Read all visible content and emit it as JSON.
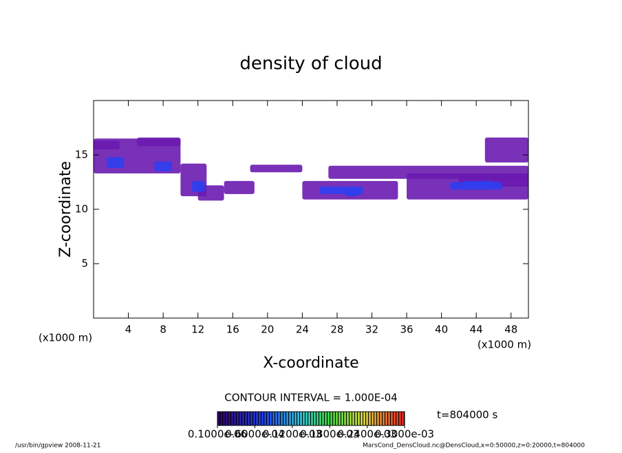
{
  "chart_data": {
    "type": "contour",
    "title": "density of cloud",
    "x_label": "X-coordinate",
    "y_label": "Z-coordinate",
    "x_unit": "(x1000 m)",
    "y_unit": "(x1000 m)",
    "xlim": [
      0,
      50
    ],
    "ylim": [
      0,
      20
    ],
    "xticks": [
      4,
      8,
      12,
      16,
      20,
      24,
      28,
      32,
      36,
      40,
      44,
      48
    ],
    "yticks": [
      5,
      10,
      15
    ],
    "patches": {
      "x": [
        [
          0,
          10
        ],
        [
          0,
          3
        ],
        [
          5,
          10
        ],
        [
          10,
          13
        ],
        [
          12,
          15
        ],
        [
          15,
          18.5
        ],
        [
          18,
          24
        ],
        [
          24,
          35
        ],
        [
          27,
          50
        ],
        [
          36,
          50
        ],
        [
          45,
          50
        ],
        [
          42,
          50
        ],
        [
          1.5,
          3.5
        ],
        [
          7,
          9
        ],
        [
          11.3,
          12.8
        ],
        [
          26,
          31
        ],
        [
          29,
          30.5
        ],
        [
          41,
          47
        ],
        [
          42.5,
          46
        ]
      ],
      "z": [
        [
          13.3,
          16.5
        ],
        [
          15.5,
          16.3
        ],
        [
          15.8,
          16.6
        ],
        [
          11.2,
          14.2
        ],
        [
          10.8,
          12.2
        ],
        [
          11.4,
          12.6
        ],
        [
          13.4,
          14.1
        ],
        [
          10.9,
          12.6
        ],
        [
          12.8,
          14
        ],
        [
          10.9,
          13.3
        ],
        [
          14.3,
          16.6
        ],
        [
          12.1,
          13.2
        ],
        [
          13.8,
          14.8
        ],
        [
          13.5,
          14.4
        ],
        [
          11.6,
          12.6
        ],
        [
          11.4,
          12.1
        ],
        [
          11.2,
          11.8
        ],
        [
          11.8,
          12.5
        ],
        [
          12.1,
          12.6
        ]
      ],
      "values": [
        2e-05,
        2e-05,
        2e-05,
        2e-05,
        2e-05,
        2e-05,
        2e-05,
        2e-05,
        2e-05,
        2e-05,
        2e-05,
        3e-05,
        7e-05,
        7e-05,
        7e-05,
        7e-05,
        8e-05,
        8e-05,
        9e-05
      ]
    },
    "contour_interval": "CONTOUR INTERVAL = 1.000E-04",
    "colorbar_ticks": [
      {
        "value": 1e-07,
        "label": "0.1000e-06"
      },
      {
        "value": 6e-05,
        "label": "0.6000e-04"
      },
      {
        "value": 0.00012,
        "label": "0.1200e-03"
      },
      {
        "value": 0.00018,
        "label": "0.1800e-03"
      },
      {
        "value": 0.00024,
        "label": "0.2400e-03"
      },
      {
        "value": 0.0003,
        "label": "0.3000e-03"
      }
    ],
    "colors": [
      "#6a1bb0",
      "#2f3ff0",
      "#3fd060",
      "#e0d040",
      "#e04020"
    ],
    "time_label": "t=804000 s",
    "footer_left": "/usr/bin/gpview  2008-11-21",
    "footer_right": "MarsCond_DensCloud.nc@DensCloud,x=0:50000,z=0:20000,t=804000"
  }
}
